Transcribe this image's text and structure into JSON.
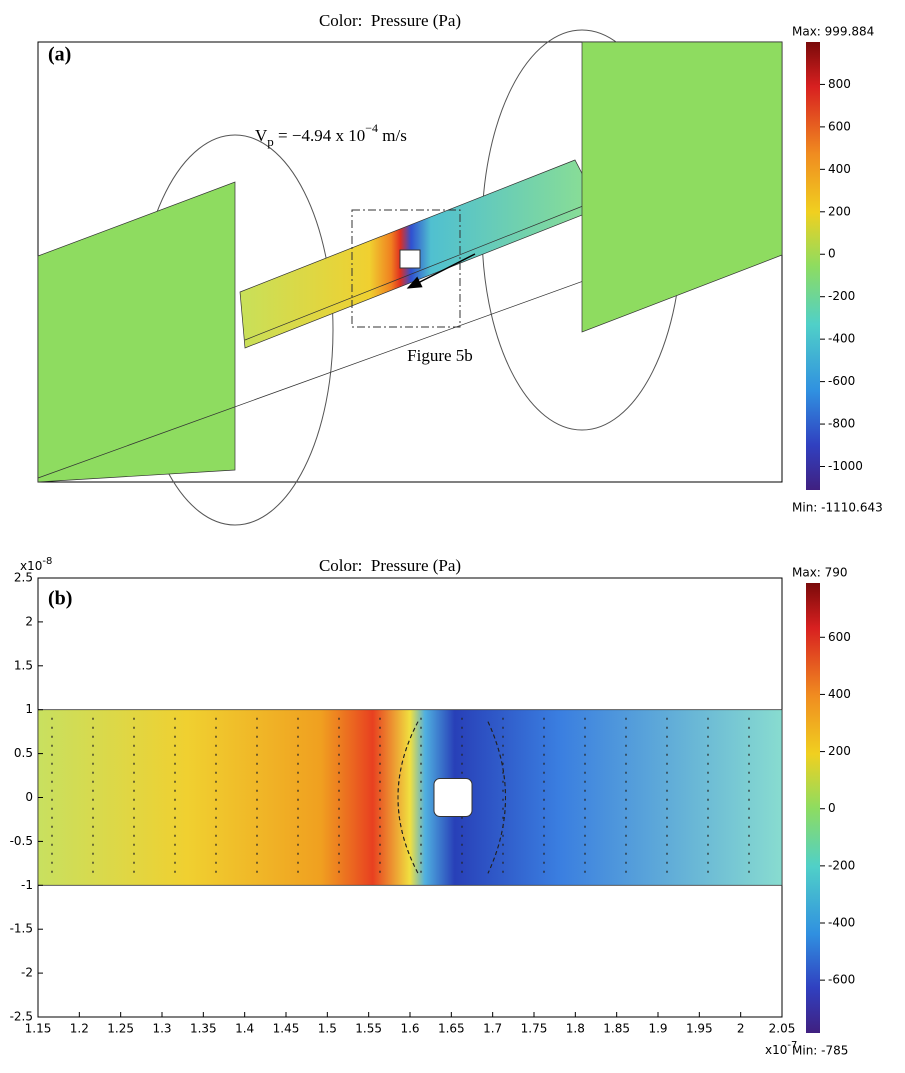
{
  "panel_a": {
    "label": "(a)",
    "title": "Color:  Pressure (Pa)",
    "velocity_label": {
      "symbol": "V",
      "subscript": "p",
      "text": " = −4.94 x 10",
      "exponent": "−4",
      "unit": " m/s"
    },
    "inset_label": "Figure 5b",
    "colorbar": {
      "max_label": "Max: 999.884",
      "min_label": "Min: -1110.643",
      "lim": [
        -1110.643,
        999.884
      ],
      "ticks": [
        800,
        600,
        400,
        200,
        0,
        -200,
        -400,
        -600,
        -800,
        -1000
      ]
    }
  },
  "panel_b": {
    "label": "(b)",
    "title": "Color:  Pressure (Pa)",
    "xlim": [
      1.15,
      2.05
    ],
    "xticks": [
      1.15,
      1.2,
      1.25,
      1.3,
      1.35,
      1.4,
      1.45,
      1.5,
      1.55,
      1.6,
      1.65,
      1.7,
      1.75,
      1.8,
      1.85,
      1.9,
      1.95,
      2,
      2.05
    ],
    "x_multiplier": {
      "base": "x10",
      "exponent": "-7"
    },
    "ylim": [
      -2.5,
      2.5
    ],
    "yticks": [
      2.5,
      2,
      1.5,
      1,
      0.5,
      0,
      -0.5,
      -1,
      -1.5,
      -2,
      -2.5
    ],
    "y_multiplier": {
      "base": "x10",
      "exponent": "-8"
    },
    "colorbar": {
      "max_label": "Max: 790",
      "min_label": "Min: -785",
      "lim": [
        -785,
        790
      ],
      "ticks": [
        600,
        400,
        200,
        0,
        -200,
        -400,
        -600
      ]
    }
  }
}
